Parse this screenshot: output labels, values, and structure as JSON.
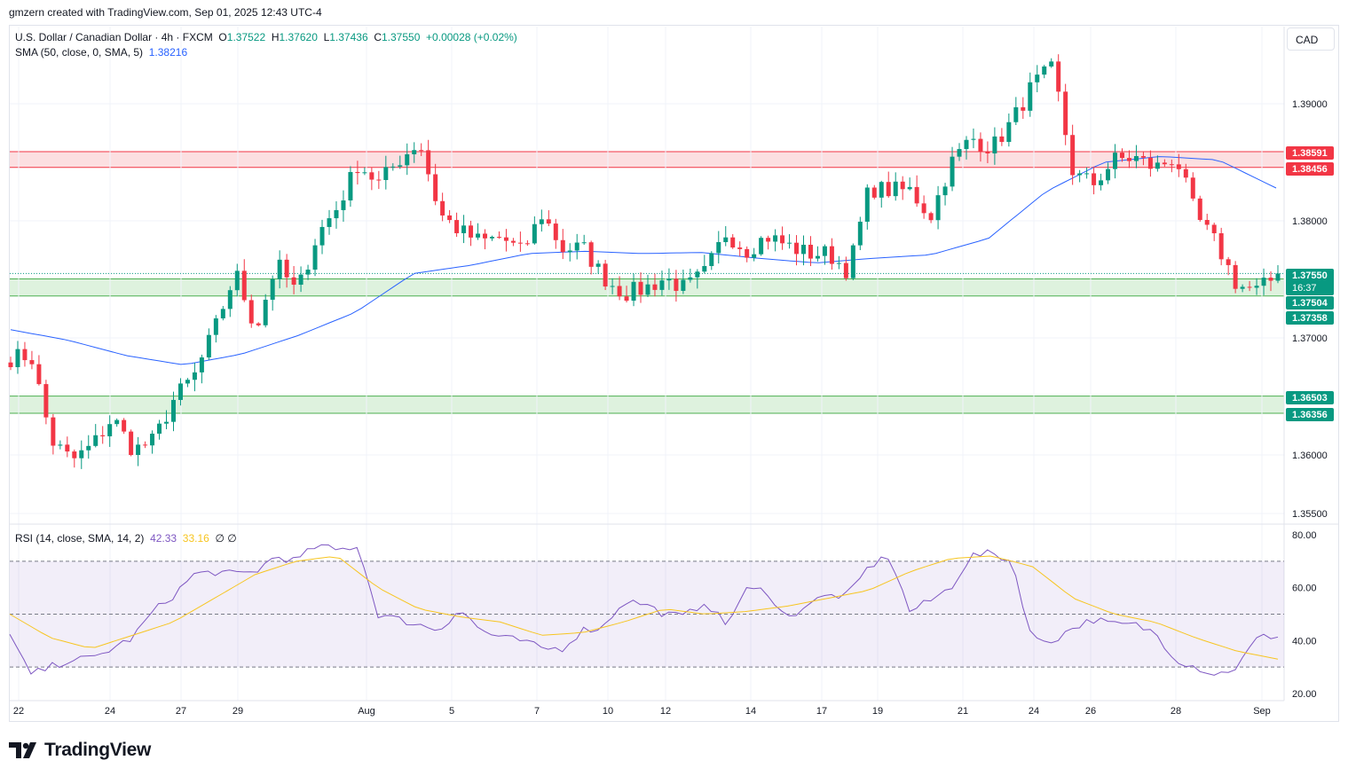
{
  "caption": "gmzern created with TradingView.com, Sep 01, 2025 12:43 UTC-4",
  "legend": {
    "symbol": "U.S. Dollar / Canadian Dollar · 4h · FXCM",
    "open_label": "O",
    "open": "1.37522",
    "high_label": "H",
    "high": "1.37620",
    "low_label": "L",
    "low": "1.37436",
    "close_label": "C",
    "close": "1.37550",
    "change": "+0.00028 (+0.02%)",
    "sma_label": "SMA (50, close, 0, SMA, 5)",
    "sma_value": "1.38216"
  },
  "currency": "CAD",
  "rsi_legend": {
    "label": "RSI (14, close, SMA, 14, 2)",
    "rsi": "42.33",
    "sma": "33.16",
    "extra": "∅ ∅"
  },
  "brand": "TradingView",
  "colors": {
    "up": "#089981",
    "down": "#f23645",
    "sma": "#2962ff",
    "rsi": "#7e57c2",
    "rsi_ma": "#f7c520",
    "resistance_fill": "#fcd9dc",
    "support_fill": "#d8f0d8"
  },
  "price_labels": [
    {
      "text": "1.38591",
      "kind": "red"
    },
    {
      "text": "1.38456",
      "kind": "red"
    },
    {
      "text": "1.37550",
      "kind": "current",
      "timer": "16:37"
    },
    {
      "text": "1.37504",
      "kind": "green"
    },
    {
      "text": "1.37358",
      "kind": "green"
    },
    {
      "text": "1.36503",
      "kind": "green"
    },
    {
      "text": "1.36356",
      "kind": "green"
    }
  ],
  "chart_data": [
    {
      "type": "candlestick",
      "y_ticks": [
        "1.39000",
        "1.38000",
        "1.37000",
        "1.36000",
        "1.35500"
      ],
      "y_tick_values": [
        1.39,
        1.38,
        1.37,
        1.36,
        1.355
      ],
      "x_ticks": [
        "22",
        "24",
        "27",
        "29",
        "Aug",
        "5",
        "7",
        "10",
        "12",
        "14",
        "17",
        "19",
        "21",
        "24",
        "26",
        "28",
        "Sep"
      ],
      "zones": [
        {
          "name": "resistance",
          "from": 1.38456,
          "to": 1.38591
        },
        {
          "name": "support",
          "from": 1.37358,
          "to": 1.37504
        },
        {
          "name": "support",
          "from": 1.36356,
          "to": 1.36503
        }
      ],
      "close_anchors": [
        1.3683,
        1.3685,
        1.3612,
        1.3595,
        1.3608,
        1.3632,
        1.3604,
        1.3612,
        1.3648,
        1.3668,
        1.3708,
        1.3756,
        1.3707,
        1.3764,
        1.3738,
        1.3788,
        1.3812,
        1.3849,
        1.3832,
        1.3852,
        1.3868,
        1.3806,
        1.3791,
        1.3782,
        1.3786,
        1.3773,
        1.3806,
        1.3776,
        1.3777,
        1.3752,
        1.3738,
        1.3742,
        1.3751,
        1.3742,
        1.3756,
        1.379,
        1.3775,
        1.3787,
        1.3779,
        1.3772,
        1.3772,
        1.3757,
        1.3828,
        1.3826,
        1.3826,
        1.3804,
        1.3849,
        1.3871,
        1.3862,
        1.3885,
        1.3916,
        1.393,
        1.3839,
        1.3832,
        1.3852,
        1.3854,
        1.3845,
        1.3855,
        1.3803,
        1.378,
        1.3745,
        1.374,
        1.3754
      ],
      "sma_anchors": [
        1.3707,
        1.3698,
        1.3685,
        1.3677,
        1.3686,
        1.3702,
        1.3722,
        1.3755,
        1.3762,
        1.3772,
        1.3774,
        1.3772,
        1.3773,
        1.3768,
        1.3764,
        1.3768,
        1.3771,
        1.3785,
        1.3825,
        1.385,
        1.3855,
        1.3852,
        1.3828
      ],
      "rsi_ticks": [
        "80.00",
        "60.00",
        "40.00",
        "20.00"
      ],
      "rsi_levels": [
        70,
        50,
        30
      ],
      "rsi_anchors": [
        42,
        27,
        30,
        33,
        33,
        37,
        41,
        51,
        57,
        65,
        66,
        65,
        66,
        72,
        70,
        76,
        74,
        76,
        50,
        48,
        46,
        44,
        52,
        44,
        41,
        40,
        37,
        37,
        44,
        45,
        55,
        54,
        50,
        49,
        55,
        46,
        59,
        59,
        48,
        54,
        57,
        57,
        68,
        72,
        51,
        55,
        60,
        72,
        73,
        70,
        40,
        40,
        45,
        48,
        46,
        46,
        43,
        33,
        30,
        27,
        30,
        41,
        42
      ],
      "rsi_ma_anchors": [
        50,
        41,
        37,
        42,
        47,
        56,
        65,
        70,
        72,
        60,
        52,
        49,
        47,
        42,
        43,
        47,
        52,
        50,
        51,
        53,
        56,
        59,
        66,
        71,
        72,
        68,
        56,
        50,
        47,
        41,
        36,
        33
      ]
    }
  ]
}
